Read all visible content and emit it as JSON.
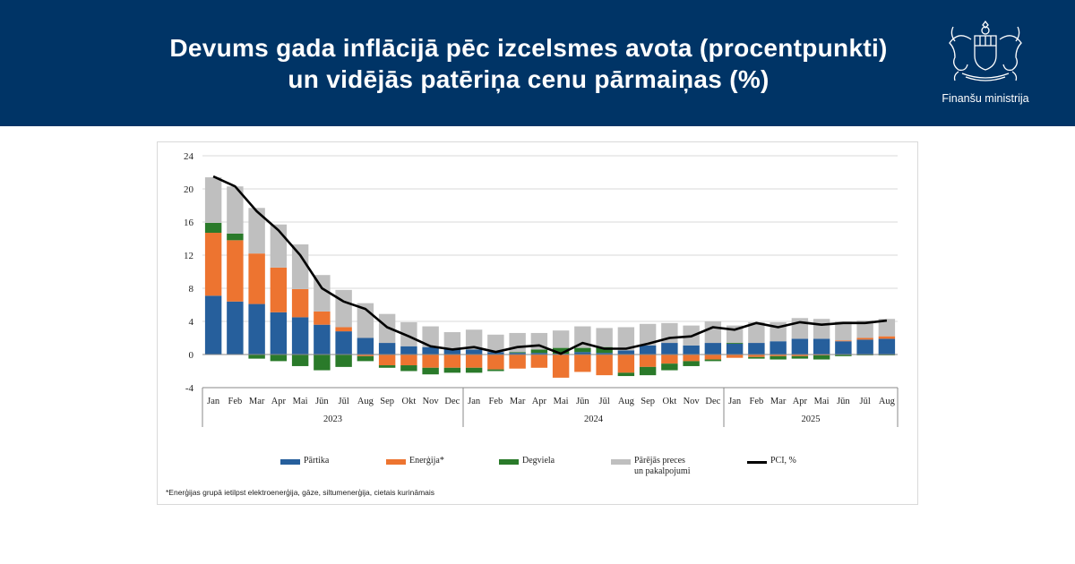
{
  "header": {
    "title_line1": "Devums gada inflācijā pēc izcelsmes avota (procentpunkti)",
    "title_line2": "un vidējās patēriņa cenu pārmaiņas (%)",
    "ministry": "Finanšu ministrija",
    "background_color": "#003466"
  },
  "footnote": "*Enerģijas grupā ietilpst elektroenerģija, gāze, siltumenerģija, cietais kurināmais",
  "legend": [
    {
      "label": "Pārtika",
      "color": "#265f9c"
    },
    {
      "label": "Enerģija*",
      "color": "#ed7430"
    },
    {
      "label": "Degviela",
      "color": "#2a7a2a"
    },
    {
      "label": "Pārējās preces",
      "label2": "un pakalpojumi",
      "color": "#bfbfbf"
    },
    {
      "label": "PCI, %",
      "color": "#000000"
    }
  ],
  "chart_data": {
    "type": "bar",
    "stacked": true,
    "title": "Devums gada inflācijā pēc izcelsmes avota (procentpunkti) un vidējās patēriņa cenu pārmaiņas (%)",
    "categories": [
      "Jan",
      "Feb",
      "Mar",
      "Apr",
      "Mai",
      "Jūn",
      "Jūl",
      "Aug",
      "Sep",
      "Okt",
      "Nov",
      "Dec",
      "Jan",
      "Feb",
      "Mar",
      "Apr",
      "Mai",
      "Jūn",
      "Jūl",
      "Aug",
      "Sep",
      "Okt",
      "Nov",
      "Dec",
      "Jan",
      "Feb",
      "Mar",
      "Apr",
      "Mai",
      "Jūn",
      "Jūl",
      "Aug"
    ],
    "years": [
      {
        "label": "2023",
        "start": 0,
        "end": 11
      },
      {
        "label": "2024",
        "start": 12,
        "end": 23
      },
      {
        "label": "2025",
        "start": 24,
        "end": 31
      }
    ],
    "ylim": [
      -4,
      24
    ],
    "yticks": [
      -4,
      0,
      4,
      8,
      12,
      16,
      20,
      24
    ],
    "grid": true,
    "legend_position": "bottom",
    "series": [
      {
        "name": "Pārtika",
        "color": "#265f9c",
        "values": [
          7.1,
          6.4,
          6.1,
          5.1,
          4.5,
          3.6,
          2.8,
          2.0,
          1.4,
          1.0,
          0.9,
          0.7,
          0.6,
          0.3,
          0.2,
          0.2,
          0.1,
          0.3,
          0.2,
          0.5,
          1.1,
          1.4,
          1.1,
          1.4,
          1.3,
          1.4,
          1.6,
          1.9,
          1.9,
          1.6,
          1.8,
          1.9
        ]
      },
      {
        "name": "Enerģija*",
        "color": "#ed7430",
        "values": [
          7.6,
          7.4,
          6.1,
          5.4,
          3.4,
          1.6,
          0.5,
          -0.2,
          -1.3,
          -1.3,
          -1.6,
          -1.6,
          -1.6,
          -1.8,
          -1.7,
          -1.6,
          -2.8,
          -2.1,
          -2.5,
          -2.2,
          -1.5,
          -1.1,
          -0.8,
          -0.6,
          -0.4,
          -0.3,
          -0.2,
          -0.2,
          -0.1,
          0.1,
          0.2,
          0.3
        ]
      },
      {
        "name": "Degviela",
        "color": "#2a7a2a",
        "values": [
          1.2,
          0.8,
          -0.5,
          -0.8,
          -1.4,
          -1.9,
          -1.5,
          -0.6,
          -0.3,
          -0.7,
          -0.8,
          -0.6,
          -0.6,
          -0.2,
          0.1,
          0.4,
          0.7,
          0.5,
          0.7,
          -0.4,
          -1.0,
          -0.8,
          -0.6,
          -0.2,
          0.1,
          -0.2,
          -0.4,
          -0.3,
          -0.5,
          -0.2,
          -0.1,
          -0.1
        ]
      },
      {
        "name": "Pārējās preces un pakalpojumi",
        "color": "#bfbfbf",
        "values": [
          5.5,
          5.7,
          5.5,
          5.2,
          5.4,
          4.4,
          4.5,
          4.2,
          3.5,
          2.9,
          2.5,
          2.0,
          2.4,
          2.1,
          2.3,
          2.0,
          2.1,
          2.6,
          2.3,
          2.8,
          2.6,
          2.4,
          2.4,
          2.6,
          2.1,
          2.5,
          2.3,
          2.5,
          2.4,
          2.3,
          2.1,
          2.1
        ]
      },
      {
        "name": "PCI, %",
        "type": "line",
        "color": "#000000",
        "values": [
          21.5,
          20.3,
          17.3,
          15.0,
          12.0,
          8.0,
          6.4,
          5.5,
          3.3,
          2.2,
          1.0,
          0.6,
          0.9,
          0.3,
          0.9,
          1.1,
          0.1,
          1.4,
          0.7,
          0.7,
          1.3,
          2.0,
          2.2,
          3.3,
          3.0,
          3.8,
          3.3,
          3.9,
          3.6,
          3.8,
          3.8,
          4.1
        ]
      }
    ]
  }
}
